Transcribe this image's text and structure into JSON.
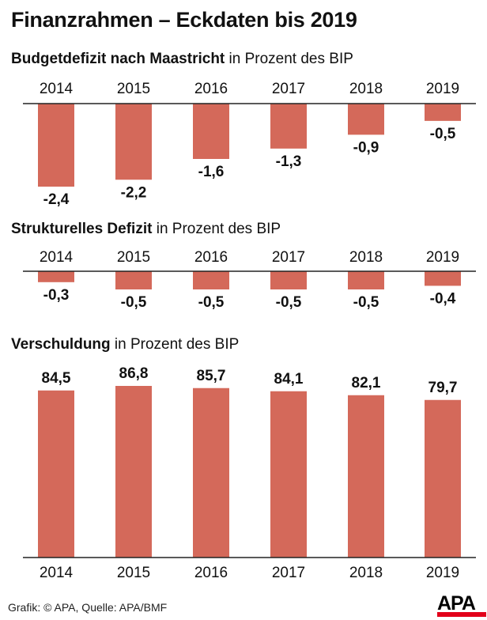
{
  "title": "Finanzrahmen – Eckdaten bis 2019",
  "footer": "Grafik: © APA, Quelle: APA/BMF",
  "logo_text": "APA",
  "colors": {
    "bar": "#d4695a",
    "logo_red": "#e2001a"
  },
  "chart_data": [
    {
      "type": "bar",
      "title_bold": "Budgetdefizit nach Maastricht",
      "title_rest": " in Prozent des BIP",
      "categories": [
        "2014",
        "2015",
        "2016",
        "2017",
        "2018",
        "2019"
      ],
      "values": [
        -2.4,
        -2.2,
        -1.6,
        -1.3,
        -0.9,
        -0.5
      ],
      "labels": [
        "-2,4",
        "-2,2",
        "-1,6",
        "-1,3",
        "-0,9",
        "-0,5"
      ]
    },
    {
      "type": "bar",
      "title_bold": "Strukturelles Defizit",
      "title_rest": " in Prozent des BIP",
      "categories": [
        "2014",
        "2015",
        "2016",
        "2017",
        "2018",
        "2019"
      ],
      "values": [
        -0.3,
        -0.5,
        -0.5,
        -0.5,
        -0.5,
        -0.4
      ],
      "labels": [
        "-0,3",
        "-0,5",
        "-0,5",
        "-0,5",
        "-0,5",
        "-0,4"
      ]
    },
    {
      "type": "bar",
      "title_bold": "Verschuldung",
      "title_rest": " in Prozent des BIP",
      "categories": [
        "2014",
        "2015",
        "2016",
        "2017",
        "2018",
        "2019"
      ],
      "values": [
        84.5,
        86.8,
        85.7,
        84.1,
        82.1,
        79.7
      ],
      "labels": [
        "84,5",
        "86,8",
        "85,7",
        "84,1",
        "82,1",
        "79,7"
      ]
    }
  ]
}
